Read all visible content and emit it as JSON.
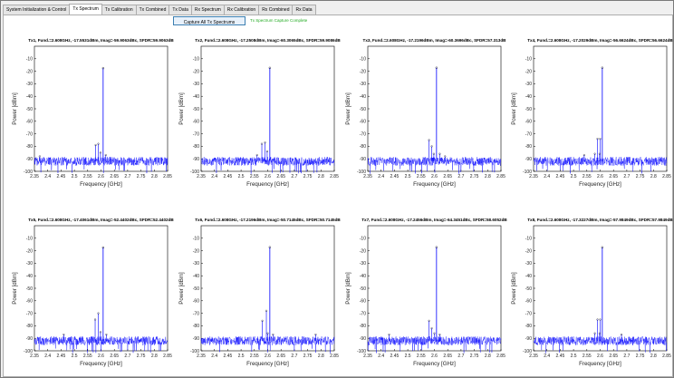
{
  "tabs": [
    {
      "label": "System Initialization & Control",
      "active": false
    },
    {
      "label": "Tx Spectrum",
      "active": true
    },
    {
      "label": "Tx Calibration",
      "active": false
    },
    {
      "label": "Tx Combined",
      "active": false
    },
    {
      "label": "Tx Data",
      "active": false
    },
    {
      "label": "Rx Spectrum",
      "active": false
    },
    {
      "label": "Rx Calibration",
      "active": false
    },
    {
      "label": "Rx Combined",
      "active": false
    },
    {
      "label": "Rx Data",
      "active": false
    }
  ],
  "toolbar": {
    "capture_label": "Capture All Tx Spectrums",
    "status_text": "Tx Spectrum Capture Complete",
    "status_color": "#22aa22"
  },
  "colors": {
    "trace": "#0000ff",
    "axes": "#000000"
  },
  "chart_data": [
    {
      "type": "line",
      "title": "Tx1, Fund.=2.608GHz, -17.5531dBm, Imag=-59.9063dBc, SFDR=59.9063dB",
      "xlabel": "Frequency [GHz]",
      "ylabel": "Power [dBm]",
      "xlim": [
        2.35,
        2.85
      ],
      "ylim": [
        -100,
        0
      ],
      "x_ticks": [
        2.35,
        2.4,
        2.45,
        2.5,
        2.55,
        2.6,
        2.65,
        2.7,
        2.75,
        2.8,
        2.85
      ],
      "y_ticks": [
        -100,
        -90,
        -80,
        -70,
        -60,
        -50,
        -40,
        -30,
        -20,
        -10
      ],
      "noise_floor": -92,
      "fund": {
        "x": 2.608,
        "y": -17.5
      },
      "spurs": [
        {
          "x": 2.58,
          "y": -79
        },
        {
          "x": 2.59,
          "y": -78
        },
        {
          "x": 2.598,
          "y": -85
        },
        {
          "x": 2.618,
          "y": -87
        },
        {
          "x": 2.37,
          "y": -88
        }
      ]
    },
    {
      "type": "line",
      "title": "Tx2, Fund.=2.608GHz, -17.2508dBm, Imag=-60.3065dBc, SFDR=59.9086dB",
      "xlabel": "Frequency [GHz]",
      "ylabel": "Power [dBm]",
      "xlim": [
        2.35,
        2.85
      ],
      "ylim": [
        -100,
        0
      ],
      "x_ticks": [
        2.35,
        2.4,
        2.45,
        2.5,
        2.55,
        2.6,
        2.65,
        2.7,
        2.75,
        2.8,
        2.85
      ],
      "y_ticks": [
        -100,
        -90,
        -80,
        -70,
        -60,
        -50,
        -40,
        -30,
        -20,
        -10
      ],
      "noise_floor": -92,
      "fund": {
        "x": 2.608,
        "y": -17.3
      },
      "spurs": [
        {
          "x": 2.578,
          "y": -78
        },
        {
          "x": 2.59,
          "y": -77
        },
        {
          "x": 2.598,
          "y": -84
        },
        {
          "x": 2.56,
          "y": -87
        }
      ]
    },
    {
      "type": "line",
      "title": "Tx3, Fund.=2.608GHz, -17.2196dBm, Imag=-60.3696dBc, SFDR=57.313dB",
      "xlabel": "Frequency [GHz]",
      "ylabel": "Power [dBm]",
      "xlim": [
        2.35,
        2.85
      ],
      "ylim": [
        -100,
        0
      ],
      "x_ticks": [
        2.35,
        2.4,
        2.45,
        2.5,
        2.55,
        2.6,
        2.65,
        2.7,
        2.75,
        2.8,
        2.85
      ],
      "y_ticks": [
        -100,
        -90,
        -80,
        -70,
        -60,
        -50,
        -40,
        -30,
        -20,
        -10
      ],
      "noise_floor": -92,
      "fund": {
        "x": 2.608,
        "y": -17.2
      },
      "spurs": [
        {
          "x": 2.58,
          "y": -75
        },
        {
          "x": 2.59,
          "y": -80
        },
        {
          "x": 2.598,
          "y": -86
        },
        {
          "x": 2.62,
          "y": -86
        },
        {
          "x": 2.64,
          "y": -88
        }
      ]
    },
    {
      "type": "line",
      "title": "Tx4, Fund.=2.608GHz, -17.2029dBm, Imag=-56.6624dBc, SFDR=56.6624dB",
      "xlabel": "Frequency [GHz]",
      "ylabel": "Power [dBm]",
      "xlim": [
        2.35,
        2.85
      ],
      "ylim": [
        -100,
        0
      ],
      "x_ticks": [
        2.35,
        2.4,
        2.45,
        2.5,
        2.55,
        2.6,
        2.65,
        2.7,
        2.75,
        2.8,
        2.85
      ],
      "y_ticks": [
        -100,
        -90,
        -80,
        -70,
        -60,
        -50,
        -40,
        -30,
        -20,
        -10
      ],
      "noise_floor": -92,
      "fund": {
        "x": 2.608,
        "y": -17.2
      },
      "spurs": [
        {
          "x": 2.59,
          "y": -74
        },
        {
          "x": 2.6,
          "y": -74
        },
        {
          "x": 2.598,
          "y": -86
        },
        {
          "x": 2.58,
          "y": -86
        },
        {
          "x": 2.54,
          "y": -87
        }
      ]
    },
    {
      "type": "line",
      "title": "Tx5, Fund.=2.608GHz, -17.4061dBm, Imag=-52.4402dBc, SFDR=52.4402dB",
      "xlabel": "Frequency [GHz]",
      "ylabel": "Power [dBm]",
      "xlim": [
        2.35,
        2.85
      ],
      "ylim": [
        -100,
        0
      ],
      "x_ticks": [
        2.35,
        2.4,
        2.45,
        2.5,
        2.55,
        2.6,
        2.65,
        2.7,
        2.75,
        2.8,
        2.85
      ],
      "y_ticks": [
        -100,
        -90,
        -80,
        -70,
        -60,
        -50,
        -40,
        -30,
        -20,
        -10
      ],
      "noise_floor": -92,
      "fund": {
        "x": 2.608,
        "y": -17.4
      },
      "spurs": [
        {
          "x": 2.578,
          "y": -75
        },
        {
          "x": 2.59,
          "y": -70
        },
        {
          "x": 2.598,
          "y": -85
        },
        {
          "x": 2.62,
          "y": -87
        },
        {
          "x": 2.46,
          "y": -87
        }
      ]
    },
    {
      "type": "line",
      "title": "Tx6, Fund.=2.608GHz, -17.2196dBm, Imag=-50.7145dBc, SFDR=50.7145dB",
      "xlabel": "Frequency [GHz]",
      "ylabel": "Power [dBm]",
      "xlim": [
        2.35,
        2.85
      ],
      "ylim": [
        -100,
        0
      ],
      "x_ticks": [
        2.35,
        2.4,
        2.45,
        2.5,
        2.55,
        2.6,
        2.65,
        2.7,
        2.75,
        2.8,
        2.85
      ],
      "y_ticks": [
        -100,
        -90,
        -80,
        -70,
        -60,
        -50,
        -40,
        -30,
        -20,
        -10
      ],
      "noise_floor": -92,
      "fund": {
        "x": 2.608,
        "y": -17.2
      },
      "spurs": [
        {
          "x": 2.58,
          "y": -76
        },
        {
          "x": 2.595,
          "y": -68
        },
        {
          "x": 2.6,
          "y": -86
        },
        {
          "x": 2.62,
          "y": -87
        },
        {
          "x": 2.78,
          "y": -87
        }
      ]
    },
    {
      "type": "line",
      "title": "Tx7, Fund.=2.608GHz, -17.2456dBm, Imag=-64.3451dBc, SFDR=58.6052dB",
      "xlabel": "Frequency [GHz]",
      "ylabel": "Power [dBm]",
      "xlim": [
        2.35,
        2.85
      ],
      "ylim": [
        -100,
        0
      ],
      "x_ticks": [
        2.35,
        2.4,
        2.45,
        2.5,
        2.55,
        2.6,
        2.65,
        2.7,
        2.75,
        2.8,
        2.85
      ],
      "y_ticks": [
        -100,
        -90,
        -80,
        -70,
        -60,
        -50,
        -40,
        -30,
        -20,
        -10
      ],
      "noise_floor": -92,
      "fund": {
        "x": 2.608,
        "y": -17.2
      },
      "spurs": [
        {
          "x": 2.58,
          "y": -76
        },
        {
          "x": 2.59,
          "y": -82
        },
        {
          "x": 2.6,
          "y": -86
        },
        {
          "x": 2.62,
          "y": -87
        },
        {
          "x": 2.43,
          "y": -87
        }
      ]
    },
    {
      "type": "line",
      "title": "Tx8, Fund.=2.608GHz, -17.3227dBm, Imag=-57.9849dBc, SFDR=57.9849dB",
      "xlabel": "Frequency [GHz]",
      "ylabel": "Power [dBm]",
      "xlim": [
        2.35,
        2.85
      ],
      "ylim": [
        -100,
        0
      ],
      "x_ticks": [
        2.35,
        2.4,
        2.45,
        2.5,
        2.55,
        2.6,
        2.65,
        2.7,
        2.75,
        2.8,
        2.85
      ],
      "y_ticks": [
        -100,
        -90,
        -80,
        -70,
        -60,
        -50,
        -40,
        -30,
        -20,
        -10
      ],
      "noise_floor": -92,
      "fund": {
        "x": 2.608,
        "y": -17.3
      },
      "spurs": [
        {
          "x": 2.59,
          "y": -75
        },
        {
          "x": 2.6,
          "y": -75
        },
        {
          "x": 2.598,
          "y": -86
        },
        {
          "x": 2.58,
          "y": -86
        },
        {
          "x": 2.68,
          "y": -87
        }
      ]
    }
  ]
}
